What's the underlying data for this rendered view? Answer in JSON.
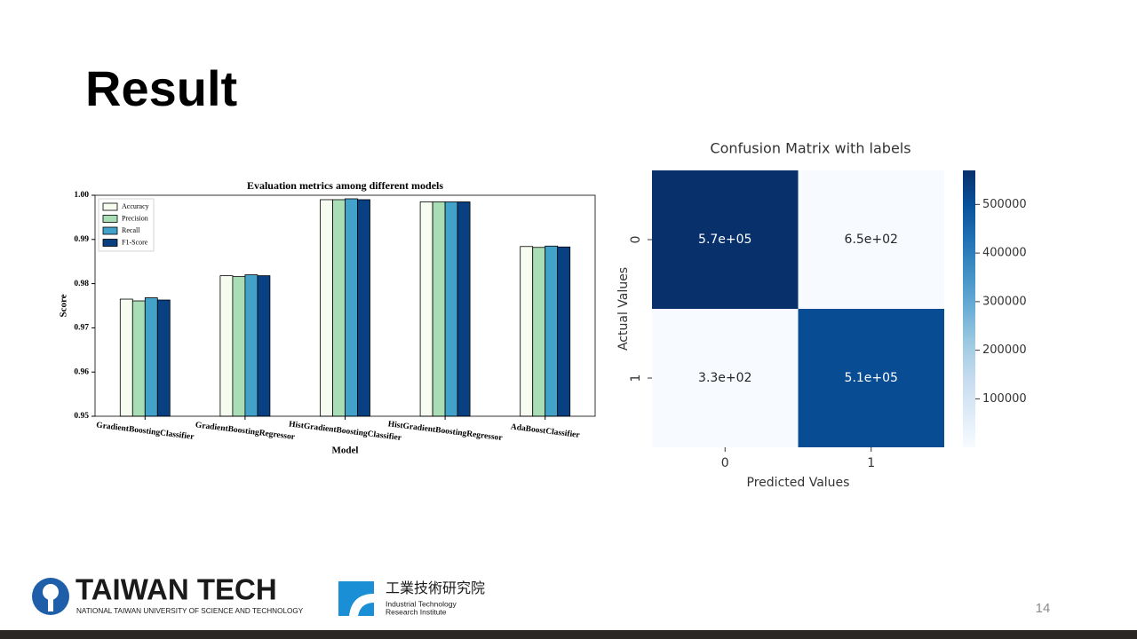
{
  "slide": {
    "title": "Result",
    "page_number": 14
  },
  "logos": {
    "taiwan_tech": {
      "name": "TAIWAN TECH",
      "subtitle": "NATIONAL TAIWAN UNIVERSITY OF SCIENCE AND TECHNOLOGY"
    },
    "itri": {
      "name": "工業技術研究院",
      "line1": "Industrial Technology",
      "line2": "Research Institute"
    }
  },
  "chart_data": [
    {
      "type": "bar",
      "title": "Evaluation metrics among different models",
      "xlabel": "Model",
      "ylabel": "Score",
      "categories": [
        "GradientBoostingClassifier",
        "GradientBoostingRegressor",
        "HistGradientBoostingClassifier",
        "HistGradientBoostingRegressor",
        "AdaBoostClassifier"
      ],
      "series": [
        {
          "name": "Accuracy",
          "color": "#f7fcf0",
          "values": [
            0.9765,
            0.9818,
            0.999,
            0.9985,
            0.9884
          ]
        },
        {
          "name": "Precision",
          "color": "#a8ddb5",
          "values": [
            0.9761,
            0.9816,
            0.999,
            0.9985,
            0.9882
          ]
        },
        {
          "name": "Recall",
          "color": "#43a2ca",
          "values": [
            0.9768,
            0.982,
            0.9992,
            0.9985,
            0.9885
          ]
        },
        {
          "name": "F1-Score",
          "color": "#084081",
          "values": [
            0.9763,
            0.9818,
            0.999,
            0.9985,
            0.9883
          ]
        }
      ],
      "ylim": [
        0.95,
        1.0
      ],
      "yticks": [
        0.95,
        0.96,
        0.97,
        0.98,
        0.99,
        {
          "value": 1.0,
          "label": "1.00"
        }
      ],
      "legend": "upper left"
    },
    {
      "type": "heatmap",
      "title": "Confusion Matrix with labels",
      "xlabel": "Predicted Values",
      "ylabel": "Actual Values",
      "x_categories": [
        "0",
        "1"
      ],
      "y_categories": [
        "0",
        "1"
      ],
      "values": [
        [
          570000,
          650
        ],
        [
          330,
          510000
        ]
      ],
      "value_labels": [
        [
          "5.7e+05",
          "6.5e+02"
        ],
        [
          "3.3e+02",
          "5.1e+05"
        ]
      ],
      "clim": [
        330,
        570000
      ],
      "colorbar_ticks": [
        100000,
        200000,
        300000,
        400000,
        500000
      ],
      "colormap": [
        "#f7fbff",
        "#deebf7",
        "#c6dbef",
        "#9ecae1",
        "#6baed6",
        "#4292c6",
        "#2171b5",
        "#08519c",
        "#08306b"
      ]
    }
  ]
}
